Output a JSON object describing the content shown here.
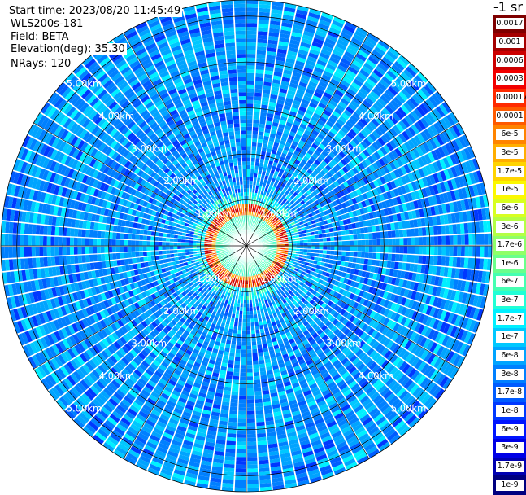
{
  "header": {
    "start_time": "Start time: 2023/08/20 11:45:49",
    "instrument": "WLS200s-181",
    "field": "Field: BETA",
    "elevation": "Elevation(deg): 35.30",
    "nrays": "NRays: 120"
  },
  "colorbar": {
    "units_label": "-1 sr",
    "labels": [
      "0.0017",
      "0.001",
      "0.0006",
      "0.0003",
      "0.00017",
      "0.0001",
      "6e-5",
      "3e-5",
      "1.7e-5",
      "1e-5",
      "6e-6",
      "3e-6",
      "1.7e-6",
      "1e-6",
      "6e-7",
      "3e-7",
      "1.7e-7",
      "1e-7",
      "6e-8",
      "3e-8",
      "1.7e-8",
      "1e-8",
      "6e-9",
      "3e-9",
      "1.7e-9",
      "1e-9"
    ],
    "colors": [
      "#7f0000",
      "#a50000",
      "#cc0000",
      "#f20000",
      "#ff2a00",
      "#ff5a00",
      "#ff8400",
      "#ffae00",
      "#ffd400",
      "#fbf800",
      "#d8ff20",
      "#b4ff44",
      "#8fff68",
      "#6aff8c",
      "#45ffb1",
      "#20ffd6",
      "#00f0ff",
      "#00c8ff",
      "#00a4ff",
      "#0080ff",
      "#005cff",
      "#0038ff",
      "#0014ff",
      "#0000e6",
      "#0000b2",
      "#000080"
    ]
  },
  "chart_data": {
    "type": "heatmap",
    "projection": "polar PPI",
    "n_rays": 120,
    "range_rings_km": [
      1,
      2,
      3,
      4,
      5
    ],
    "range_labels": [
      "1.00km",
      "2.00km",
      "3.00km",
      "4.00km",
      "5.00km"
    ],
    "max_range_km": 5.35,
    "near_field_ring_km": [
      0.75,
      0.95
    ],
    "spokes_deg": [
      0,
      30,
      60,
      90,
      120,
      150,
      180,
      210,
      240,
      270,
      300,
      330
    ]
  }
}
